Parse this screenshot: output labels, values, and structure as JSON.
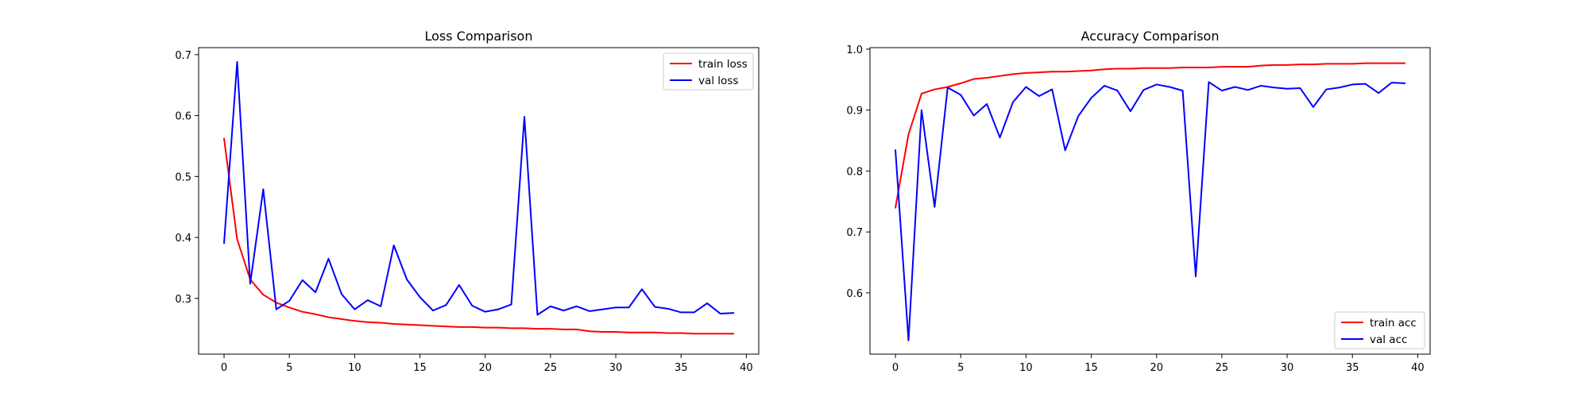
{
  "chart_data": [
    {
      "type": "line",
      "title": "Loss Comparison",
      "xlabel": "",
      "ylabel": "",
      "xlim": [
        -1.95,
        40.95
      ],
      "ylim": [
        0.2085,
        0.7115
      ],
      "xticks": [
        0,
        5,
        10,
        15,
        20,
        25,
        30,
        35,
        40
      ],
      "yticks": [
        0.3,
        0.4,
        0.5,
        0.6,
        0.7
      ],
      "xtick_labels": [
        "0",
        "5",
        "10",
        "15",
        "20",
        "25",
        "30",
        "35",
        "40"
      ],
      "ytick_labels": [
        "0.3",
        "0.4",
        "0.5",
        "0.6",
        "0.7"
      ],
      "grid": false,
      "legend_position": "top-right",
      "x": [
        0,
        1,
        2,
        3,
        4,
        5,
        6,
        7,
        8,
        9,
        10,
        11,
        12,
        13,
        14,
        15,
        16,
        17,
        18,
        19,
        20,
        21,
        22,
        23,
        24,
        25,
        26,
        27,
        28,
        29,
        30,
        31,
        32,
        33,
        34,
        35,
        36,
        37,
        38,
        39
      ],
      "series": [
        {
          "name": "train loss",
          "color": "#ff0000",
          "values": [
            0.562,
            0.397,
            0.331,
            0.306,
            0.293,
            0.285,
            0.278,
            0.274,
            0.269,
            0.266,
            0.263,
            0.261,
            0.26,
            0.258,
            0.257,
            0.256,
            0.255,
            0.254,
            0.253,
            0.253,
            0.252,
            0.252,
            0.251,
            0.251,
            0.25,
            0.25,
            0.249,
            0.249,
            0.246,
            0.245,
            0.245,
            0.244,
            0.244,
            0.244,
            0.243,
            0.243,
            0.242,
            0.242,
            0.242,
            0.242
          ]
        },
        {
          "name": "val loss",
          "color": "#0000ff",
          "values": [
            0.391,
            0.688,
            0.324,
            0.479,
            0.282,
            0.296,
            0.33,
            0.31,
            0.365,
            0.307,
            0.282,
            0.297,
            0.287,
            0.387,
            0.331,
            0.302,
            0.28,
            0.289,
            0.322,
            0.288,
            0.278,
            0.282,
            0.29,
            0.598,
            0.273,
            0.287,
            0.28,
            0.287,
            0.279,
            0.282,
            0.285,
            0.285,
            0.315,
            0.286,
            0.283,
            0.277,
            0.277,
            0.292,
            0.275,
            0.276
          ]
        }
      ]
    },
    {
      "type": "line",
      "title": "Accuracy Comparison",
      "xlabel": "",
      "ylabel": "",
      "xlim": [
        -1.95,
        40.95
      ],
      "ylim": [
        0.4995,
        1.0025
      ],
      "xticks": [
        0,
        5,
        10,
        15,
        20,
        25,
        30,
        35,
        40
      ],
      "yticks": [
        0.6,
        0.7,
        0.8,
        0.9,
        1.0
      ],
      "xtick_labels": [
        "0",
        "5",
        "10",
        "15",
        "20",
        "25",
        "30",
        "35",
        "40"
      ],
      "ytick_labels": [
        "0.6",
        "0.7",
        "0.8",
        "0.9",
        "1.0"
      ],
      "grid": false,
      "legend_position": "bottom-right",
      "x": [
        0,
        1,
        2,
        3,
        4,
        5,
        6,
        7,
        8,
        9,
        10,
        11,
        12,
        13,
        14,
        15,
        16,
        17,
        18,
        19,
        20,
        21,
        22,
        23,
        24,
        25,
        26,
        27,
        28,
        29,
        30,
        31,
        32,
        33,
        34,
        35,
        36,
        37,
        38,
        39
      ],
      "series": [
        {
          "name": "train acc",
          "color": "#ff0000",
          "values": [
            0.74,
            0.86,
            0.927,
            0.934,
            0.938,
            0.944,
            0.951,
            0.953,
            0.956,
            0.959,
            0.961,
            0.962,
            0.963,
            0.963,
            0.964,
            0.965,
            0.967,
            0.968,
            0.968,
            0.969,
            0.969,
            0.969,
            0.97,
            0.97,
            0.97,
            0.971,
            0.971,
            0.971,
            0.973,
            0.974,
            0.974,
            0.975,
            0.975,
            0.976,
            0.976,
            0.976,
            0.977,
            0.977,
            0.977,
            0.977
          ]
        },
        {
          "name": "val acc",
          "color": "#0000ff",
          "values": [
            0.834,
            0.522,
            0.9,
            0.741,
            0.937,
            0.925,
            0.891,
            0.91,
            0.855,
            0.913,
            0.938,
            0.923,
            0.934,
            0.834,
            0.89,
            0.92,
            0.94,
            0.932,
            0.898,
            0.933,
            0.942,
            0.938,
            0.932,
            0.627,
            0.946,
            0.932,
            0.938,
            0.933,
            0.94,
            0.937,
            0.935,
            0.936,
            0.905,
            0.934,
            0.937,
            0.942,
            0.943,
            0.928,
            0.945,
            0.944
          ]
        }
      ]
    }
  ]
}
